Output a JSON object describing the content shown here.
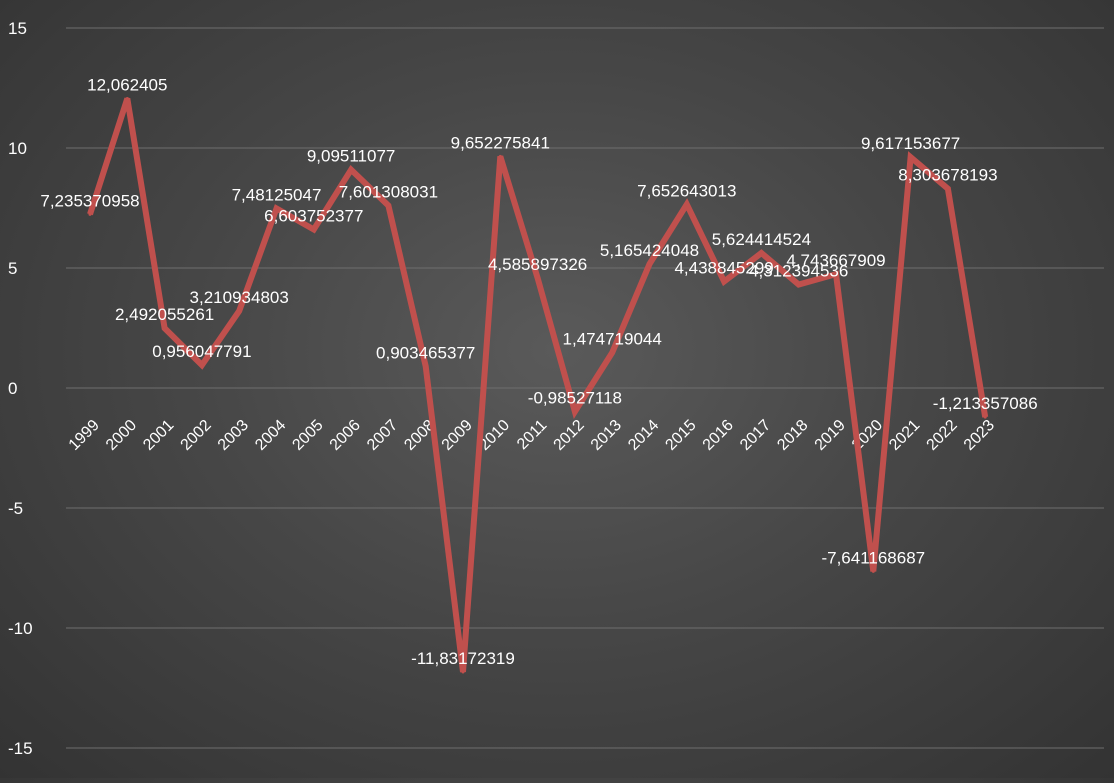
{
  "chart_data": {
    "type": "line",
    "title": "",
    "xlabel": "",
    "ylabel": "",
    "ylim": [
      -15,
      15
    ],
    "yticks": [
      {
        "value": 15,
        "label": "15"
      },
      {
        "value": 10,
        "label": "10"
      },
      {
        "value": 5,
        "label": "5"
      },
      {
        "value": 0,
        "label": "0"
      },
      {
        "value": -5,
        "label": "-5"
      },
      {
        "value": -10,
        "label": "-10"
      },
      {
        "value": -15,
        "label": "-15"
      }
    ],
    "grid": true,
    "legend": "none",
    "colors": {
      "line": "#c0504d",
      "text": "#ffffff",
      "grid": "#6e6e6e"
    },
    "categories": [
      "1999",
      "2000",
      "2001",
      "2002",
      "2003",
      "2004",
      "2005",
      "2006",
      "2007",
      "2008",
      "2009",
      "2010",
      "2011",
      "2012",
      "2013",
      "2014",
      "2015",
      "2016",
      "2017",
      "2018",
      "2019",
      "2020",
      "2021",
      "2022",
      "2023"
    ],
    "series": [
      {
        "values": [
          7.235370958,
          12.062405,
          2.492055261,
          0.956047791,
          3.210934803,
          7.48125047,
          6.603752377,
          9.09511077,
          7.601308031,
          0.903465377,
          -11.83172319,
          9.652275841,
          4.585897326,
          -0.98527118,
          1.474719044,
          5.165424048,
          7.652643013,
          4.438845299,
          5.624414524,
          4.312394536,
          4.743667909,
          -7.641168687,
          9.617153677,
          8.303678193,
          -1.213357086
        ],
        "data_labels": [
          "7,235370958",
          "12,062405",
          "2,492055261",
          "0,956047791",
          "3,210934803",
          "7,48125047",
          "6,603752377",
          "9,09511077",
          "7,601308031",
          "0,903465377",
          "-11,83172319",
          "9,652275841",
          "4,585897326",
          "-0,98527118",
          "1,474719044",
          "5,165424048",
          "7,652643013",
          "4,438845299",
          "5,624414524",
          "4,312394536",
          "4,743667909",
          "-7,641168687",
          "9,617153677",
          "8,303678193",
          "-1,213357086"
        ]
      }
    ]
  }
}
